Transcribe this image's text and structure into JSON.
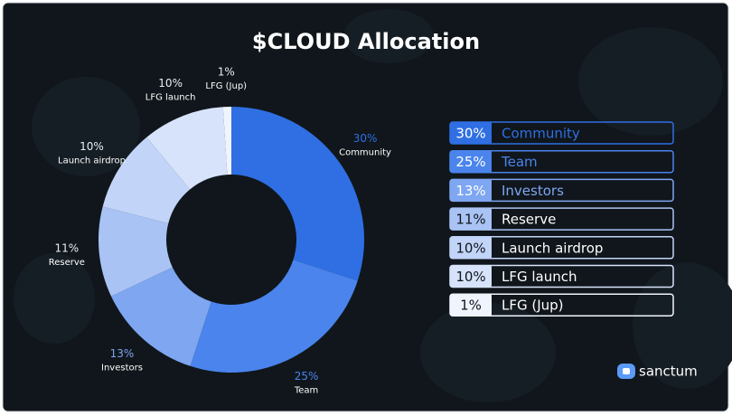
{
  "chart_data": {
    "type": "donut",
    "title": "$CLOUD Allocation",
    "categories": [
      "Community",
      "Team",
      "Investors",
      "Reserve",
      "Launch airdrop",
      "LFG launch",
      "LFG (Jup)"
    ],
    "values": [
      30,
      25,
      13,
      11,
      10,
      10,
      1
    ],
    "value_labels": [
      "30%",
      "25%",
      "13%",
      "11%",
      "10%",
      "10%",
      "1%"
    ],
    "colors": [
      "#2f6fe3",
      "#4a84ec",
      "#7ea6f1",
      "#a9c3f5",
      "#c2d4f8",
      "#d7e3fb",
      "#f0f4fd"
    ],
    "legend": "right",
    "brand": "sanctum"
  }
}
